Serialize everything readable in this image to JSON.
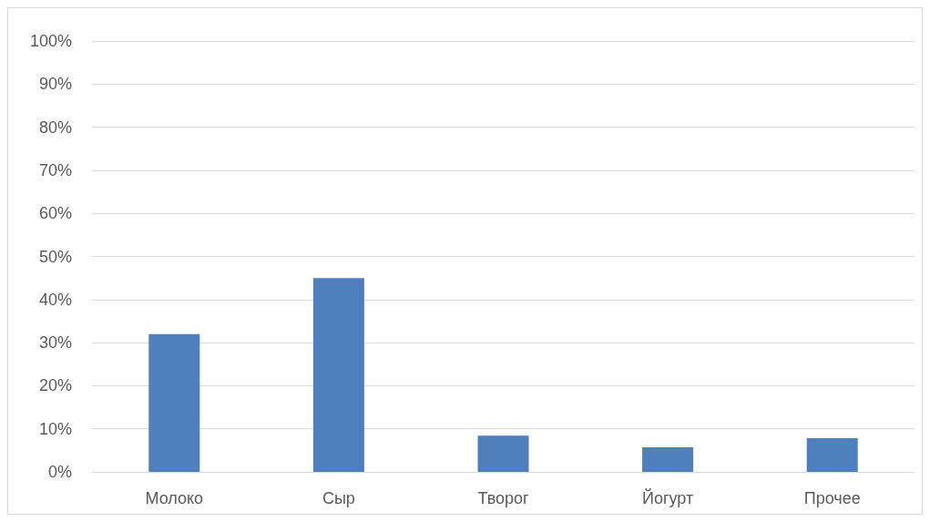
{
  "chart_data": {
    "type": "bar",
    "categories": [
      "Молоко",
      "Сыр",
      "Творог",
      "Йогурт",
      "Прочее"
    ],
    "values": [
      32,
      45,
      8.4,
      5.7,
      7.8
    ],
    "color": "#4f7fbd",
    "ylim": [
      0,
      100
    ],
    "yticks": [
      {
        "value": 0,
        "label": "0%"
      },
      {
        "value": 10,
        "label": "10%"
      },
      {
        "value": 20,
        "label": "20%"
      },
      {
        "value": 30,
        "label": "30%"
      },
      {
        "value": 40,
        "label": "40%"
      },
      {
        "value": 50,
        "label": "50%"
      },
      {
        "value": 60,
        "label": "60%"
      },
      {
        "value": 70,
        "label": "70%"
      },
      {
        "value": 80,
        "label": "80%"
      },
      {
        "value": 90,
        "label": "90%"
      },
      {
        "value": 100,
        "label": "100%"
      }
    ],
    "grid": "y"
  }
}
